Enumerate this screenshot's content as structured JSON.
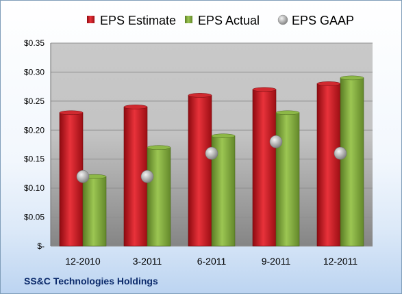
{
  "company_name": "SS&C Technologies Holdings",
  "chart_data": {
    "type": "bar",
    "categories": [
      "12-2010",
      "3-2011",
      "6-2011",
      "9-2011",
      "12-2011"
    ],
    "series": [
      {
        "name": "EPS Estimate",
        "kind": "bar",
        "color": "#c0141c",
        "values": [
          0.23,
          0.24,
          0.26,
          0.27,
          0.28
        ]
      },
      {
        "name": "EPS Actual",
        "kind": "bar",
        "color": "#7ea93a",
        "values": [
          0.12,
          0.17,
          0.19,
          0.23,
          0.29
        ]
      },
      {
        "name": "EPS GAAP",
        "kind": "marker",
        "color": "#a9a9a9",
        "values": [
          0.12,
          0.12,
          0.16,
          0.18,
          0.16
        ]
      }
    ],
    "ylim": [
      0,
      0.35
    ],
    "ytick_values": [
      0,
      0.05,
      0.1,
      0.15,
      0.2,
      0.25,
      0.3,
      0.35
    ],
    "ytick_labels": [
      "$-",
      "$0.05",
      "$0.10",
      "$0.15",
      "$0.20",
      "$0.25",
      "$0.30",
      "$0.35"
    ],
    "grid": true,
    "legend_position": "top"
  }
}
